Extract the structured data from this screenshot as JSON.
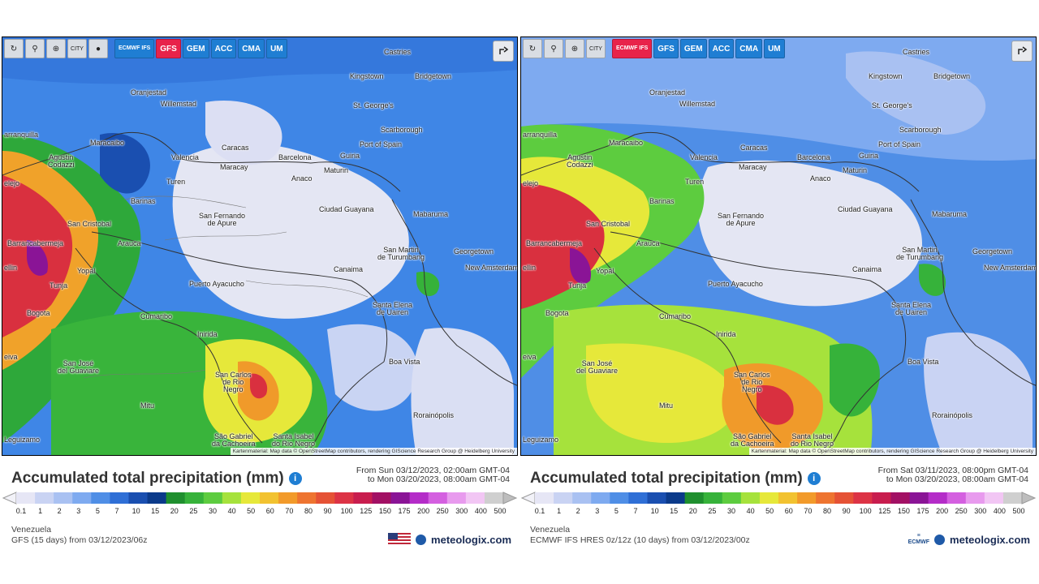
{
  "panels": [
    {
      "id": "left",
      "toolbar": {
        "buttons": [
          "refresh-icon",
          "location-pin-icon",
          "zoom-icon",
          "city-labels-icon",
          "dark-mode-icon"
        ],
        "city_label": "CITY",
        "models": [
          "ECMWF IFS",
          "GFS",
          "GEM",
          "ACC",
          "CMA",
          "UM"
        ],
        "active_model": "GFS"
      },
      "title": "Accumulated total precipitation (mm)",
      "range_from": "From Sun 03/12/2023, 02:00am GMT-04",
      "range_to": "to Mon 03/20/2023, 08:00am GMT-04",
      "region": "Venezuela",
      "model_info": "GFS (15 days) from 03/12/2023/06z",
      "brand": "meteologix.com",
      "attribution": "Kartenmaterial: Map data © OpenStreetMap contributors, rendering GIScience Research Group @ Heidelberg University",
      "places": [
        "Castries",
        "Kingstown",
        "Bridgetown",
        "St. George's",
        "Oranjestad",
        "Willemstad",
        "Scarborough",
        "Port of Spain",
        "arranquilla",
        "Maracaibo",
        "Agustin Codazzi",
        "Caracas",
        "Valencia",
        "Maracay",
        "Barcelona",
        "Guiria",
        "Maturin",
        "Anaco",
        "Turen",
        "Barinas",
        "San Cristobal",
        "San Fernando de Apure",
        "Ciudad Guayana",
        "Mabaruma",
        "Barrancabermeja",
        "Arauca",
        "San Martin de Turumbang",
        "Georgetown",
        "New Amsterdam",
        "Canaima",
        "Tunja",
        "Yopal",
        "Puerto Ayacucho",
        "Bogota",
        "Cumaribo",
        "Santa Elena de Uairen",
        "Inirida",
        "San José del Guaviare",
        "Boa Vista",
        "San Carlos de Rio Negro",
        "Mitu",
        "Rorainópolis",
        "São Gabriel da Cachoeira",
        "Santa Isabel do Rio Negro",
        "Leguizamo",
        "ellin",
        "eiva",
        "elejo"
      ]
    },
    {
      "id": "right",
      "toolbar": {
        "buttons": [
          "refresh-icon",
          "location-pin-icon",
          "zoom-icon",
          "city-labels-icon"
        ],
        "city_label": "CITY",
        "models": [
          "ECMWF IFS",
          "GFS",
          "GEM",
          "ACC",
          "CMA",
          "UM"
        ],
        "active_model": "ECMWF IFS"
      },
      "title": "Accumulated total precipitation (mm)",
      "range_from": "From Sat 03/11/2023, 08:00pm GMT-04",
      "range_to": "to Mon 03/20/2023, 08:00am GMT-04",
      "region": "Venezuela",
      "model_info": "ECMWF IFS HRES 0z/12z (10 days) from 03/12/2023/00z",
      "brand": "meteologix.com",
      "ecmwf_logo": "ECMWF",
      "attribution": "Kartenmaterial: Map data © OpenStreetMap contributors, rendering GIScience Research Group @ Heidelberg University"
    }
  ],
  "legend": {
    "ticks": [
      "0.1",
      "1",
      "2",
      "3",
      "5",
      "7",
      "10",
      "15",
      "20",
      "25",
      "30",
      "40",
      "50",
      "60",
      "70",
      "80",
      "90",
      "100",
      "125",
      "150",
      "175",
      "200",
      "250",
      "300",
      "400",
      "500"
    ],
    "colors": [
      "#e6e6f5",
      "#c9d3f3",
      "#a9c1f2",
      "#7eaaf0",
      "#4f8ee6",
      "#2f6fd6",
      "#1a4fb0",
      "#0b3a8a",
      "#1f8f2e",
      "#36b23a",
      "#5dcc3f",
      "#a6e23c",
      "#e6e83a",
      "#f2c230",
      "#f29a2a",
      "#ee7430",
      "#e55235",
      "#dc3345",
      "#c81d4e",
      "#a21064",
      "#8a1496",
      "#b42cc8",
      "#d45fe0",
      "#e89aee",
      "#f2c6f4",
      "#cfcfcf"
    ]
  }
}
